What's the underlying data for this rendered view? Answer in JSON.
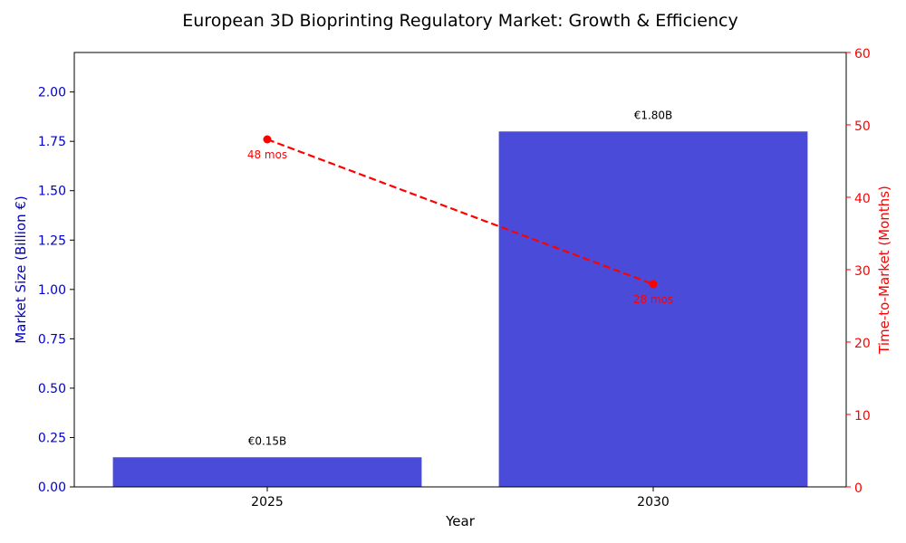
{
  "chart_data": {
    "type": "bar+line",
    "title": "European 3D Bioprinting Regulatory Market: Growth & Efficiency",
    "xlabel": "Year",
    "categories": [
      "2025",
      "2030"
    ],
    "left_axis": {
      "label": "Market Size (Billion €)",
      "color": "#0000cc",
      "ylim": [
        0,
        2.2
      ],
      "ticks": [
        "0.00",
        "0.25",
        "0.50",
        "0.75",
        "1.00",
        "1.25",
        "1.50",
        "1.75",
        "2.00"
      ],
      "tick_values": [
        0,
        0.25,
        0.5,
        0.75,
        1.0,
        1.25,
        1.5,
        1.75,
        2.0
      ]
    },
    "right_axis": {
      "label": "Time-to-Market (Months)",
      "color": "#ff0000",
      "ylim": [
        0,
        60
      ],
      "ticks": [
        "0",
        "10",
        "20",
        "30",
        "40",
        "50",
        "60"
      ],
      "tick_values": [
        0,
        10,
        20,
        30,
        40,
        50,
        60
      ]
    },
    "series": [
      {
        "name": "Market Size",
        "kind": "bar",
        "axis": "left",
        "color": "#4b4bd9",
        "values": [
          0.15,
          1.8
        ],
        "labels": [
          "€0.15B",
          "€1.80B"
        ]
      },
      {
        "name": "Time-to-Market",
        "kind": "line",
        "axis": "right",
        "color": "#ff0000",
        "style": "dashed",
        "values": [
          48,
          28
        ],
        "labels": [
          "48 mos",
          "28 mos"
        ]
      }
    ]
  }
}
